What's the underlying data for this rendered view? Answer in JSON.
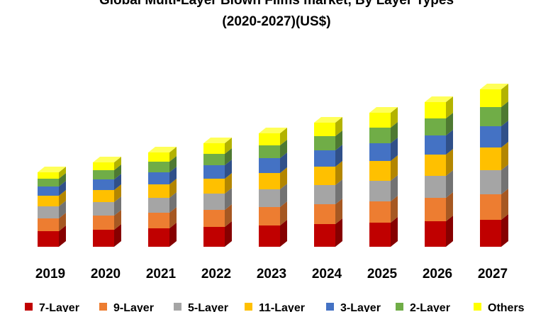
{
  "chart_data": {
    "type": "bar3d_stacked",
    "title": "Global Multi-Layer Blown Films market, By Layer Types",
    "subtitle": "(2020-2027)(US$)",
    "categories": [
      "2019",
      "2020",
      "2021",
      "2022",
      "2023",
      "2024",
      "2025",
      "2026",
      "2027"
    ],
    "series": [
      {
        "name": "7-Layer",
        "color": "#c00000",
        "values": [
          22,
          24,
          26,
          28,
          30,
          32,
          34,
          36,
          38
        ]
      },
      {
        "name": "9-Layer",
        "color": "#ed7d31",
        "values": [
          18,
          20,
          22,
          24,
          26,
          28,
          30,
          33,
          36
        ]
      },
      {
        "name": "5-Layer",
        "color": "#a5a5a5",
        "values": [
          17,
          19,
          21,
          23,
          25,
          27,
          29,
          31,
          34
        ]
      },
      {
        "name": "11-Layer",
        "color": "#ffc000",
        "values": [
          15,
          17,
          19,
          21,
          23,
          26,
          28,
          30,
          32
        ]
      },
      {
        "name": "3-Layer",
        "color": "#4472c4",
        "values": [
          13,
          15,
          17,
          19,
          21,
          23,
          25,
          27,
          30
        ]
      },
      {
        "name": "2-Layer",
        "color": "#70ad47",
        "values": [
          11,
          13,
          15,
          16,
          18,
          20,
          22,
          24,
          27
        ]
      },
      {
        "name": "Others",
        "color": "#ffff00",
        "values": [
          9,
          11,
          13,
          15,
          17,
          19,
          21,
          23,
          25
        ]
      }
    ],
    "legend": "bottom"
  }
}
